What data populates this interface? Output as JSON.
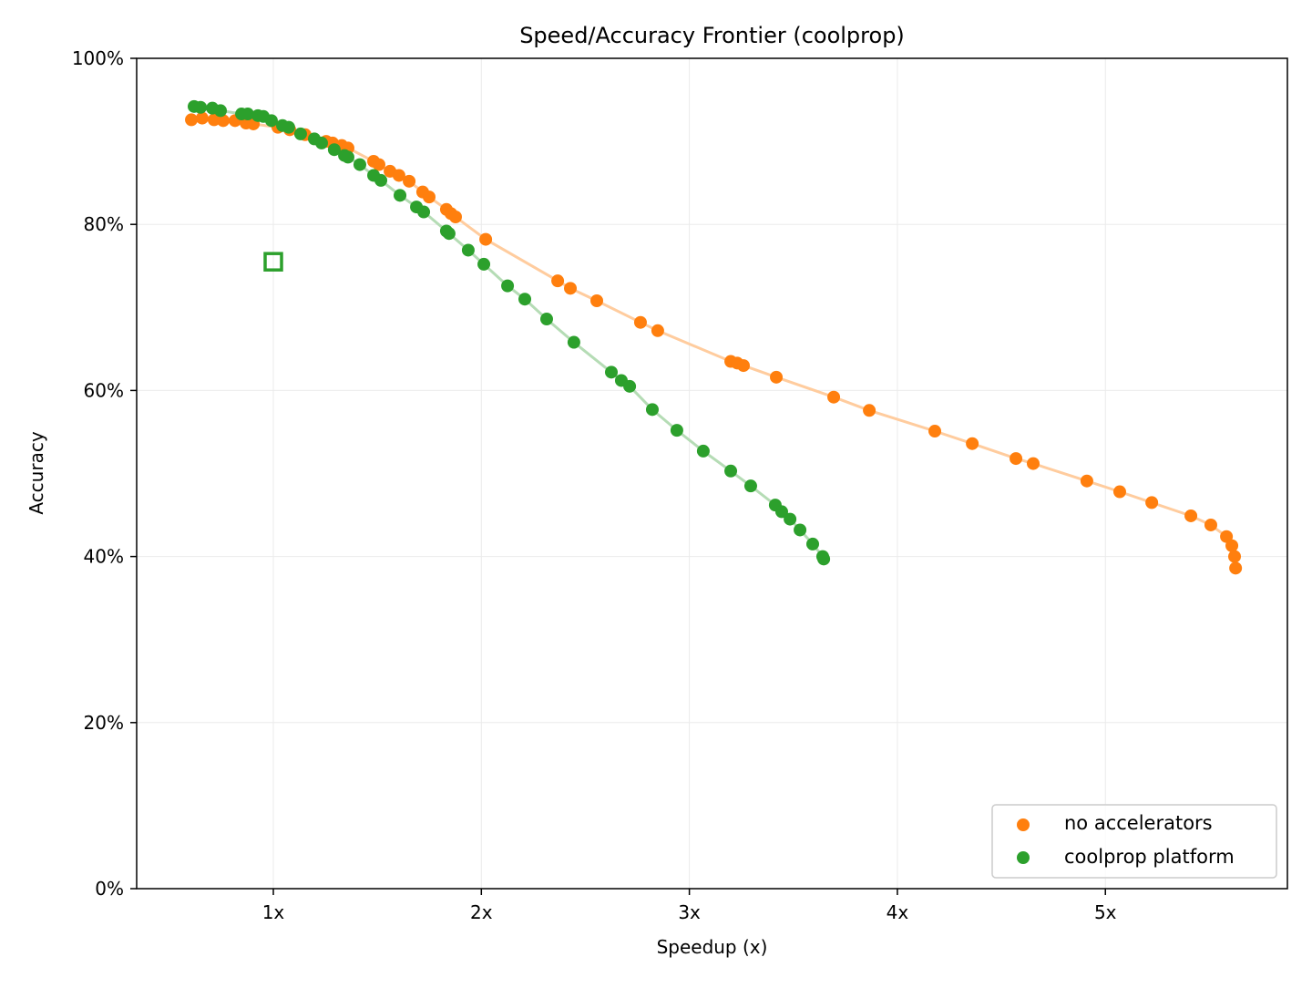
{
  "chart_data": {
    "type": "scatter",
    "title": "Speed/Accuracy Frontier (coolprop)",
    "xlabel": "Speedup (x)",
    "ylabel": "Accuracy",
    "xlim": [
      0.343,
      5.875
    ],
    "ylim": [
      0,
      100
    ],
    "xticks": [
      1,
      2,
      3,
      4,
      5
    ],
    "xtick_labels": [
      "1x",
      "2x",
      "3x",
      "4x",
      "5x"
    ],
    "yticks": [
      0,
      20,
      40,
      60,
      80,
      100
    ],
    "ytick_labels": [
      "0%",
      "20%",
      "40%",
      "60%",
      "80%",
      "100%"
    ],
    "grid": true,
    "legend_position": "bottom-right",
    "series": [
      {
        "name": "no accelerators",
        "color": "#ff7f0e",
        "line_color": "#ffcc9e",
        "x": [
          0.606,
          0.658,
          0.715,
          0.759,
          0.816,
          0.869,
          0.904,
          1.022,
          1.079,
          1.153,
          1.254,
          1.285,
          1.329,
          1.359,
          1.482,
          1.508,
          1.561,
          1.604,
          1.653,
          1.718,
          1.749,
          1.832,
          1.854,
          1.876,
          2.021,
          2.367,
          2.428,
          2.555,
          2.765,
          2.848,
          3.199,
          3.23,
          3.26,
          3.418,
          3.694,
          3.865,
          4.18,
          4.36,
          4.57,
          4.653,
          4.911,
          5.069,
          5.223,
          5.411,
          5.507,
          5.582,
          5.608,
          5.621,
          5.626
        ],
        "y": [
          92.6,
          92.8,
          92.6,
          92.5,
          92.5,
          92.2,
          92.1,
          91.7,
          91.4,
          90.8,
          90.0,
          89.8,
          89.5,
          89.2,
          87.6,
          87.2,
          86.4,
          85.9,
          85.2,
          83.9,
          83.3,
          81.8,
          81.3,
          80.9,
          78.2,
          73.2,
          72.3,
          70.8,
          68.2,
          67.2,
          63.5,
          63.3,
          63.0,
          61.6,
          59.2,
          57.6,
          55.1,
          53.6,
          51.8,
          51.2,
          49.1,
          47.8,
          46.5,
          44.9,
          43.8,
          42.4,
          41.3,
          40.0,
          38.6
        ]
      },
      {
        "name": "coolprop platform",
        "color": "#2ca02c",
        "line_color": "#b5dcb5",
        "x": [
          0.619,
          0.65,
          0.707,
          0.746,
          0.847,
          0.877,
          0.926,
          0.952,
          0.991,
          1.044,
          1.074,
          1.131,
          1.197,
          1.232,
          1.293,
          1.342,
          1.359,
          1.416,
          1.482,
          1.517,
          1.609,
          1.688,
          1.723,
          1.832,
          1.845,
          1.937,
          2.012,
          2.126,
          2.209,
          2.314,
          2.445,
          2.625,
          2.673,
          2.713,
          2.822,
          2.94,
          3.067,
          3.199,
          3.295,
          3.413,
          3.444,
          3.484,
          3.532,
          3.593,
          3.641,
          3.646
        ],
        "y": [
          94.2,
          94.1,
          94.0,
          93.7,
          93.3,
          93.3,
          93.1,
          93.0,
          92.5,
          91.9,
          91.7,
          90.9,
          90.3,
          89.8,
          89.0,
          88.3,
          88.1,
          87.2,
          85.9,
          85.3,
          83.5,
          82.1,
          81.5,
          79.2,
          78.9,
          76.9,
          75.2,
          72.6,
          71.0,
          68.6,
          65.8,
          62.2,
          61.2,
          60.5,
          57.7,
          55.2,
          52.7,
          50.3,
          48.5,
          46.2,
          45.4,
          44.5,
          43.2,
          41.5,
          40.0,
          39.7
        ]
      }
    ],
    "baseline": {
      "x": 1.0,
      "y": 75.5,
      "color": "#2ca02c",
      "marker": "open-square"
    }
  }
}
